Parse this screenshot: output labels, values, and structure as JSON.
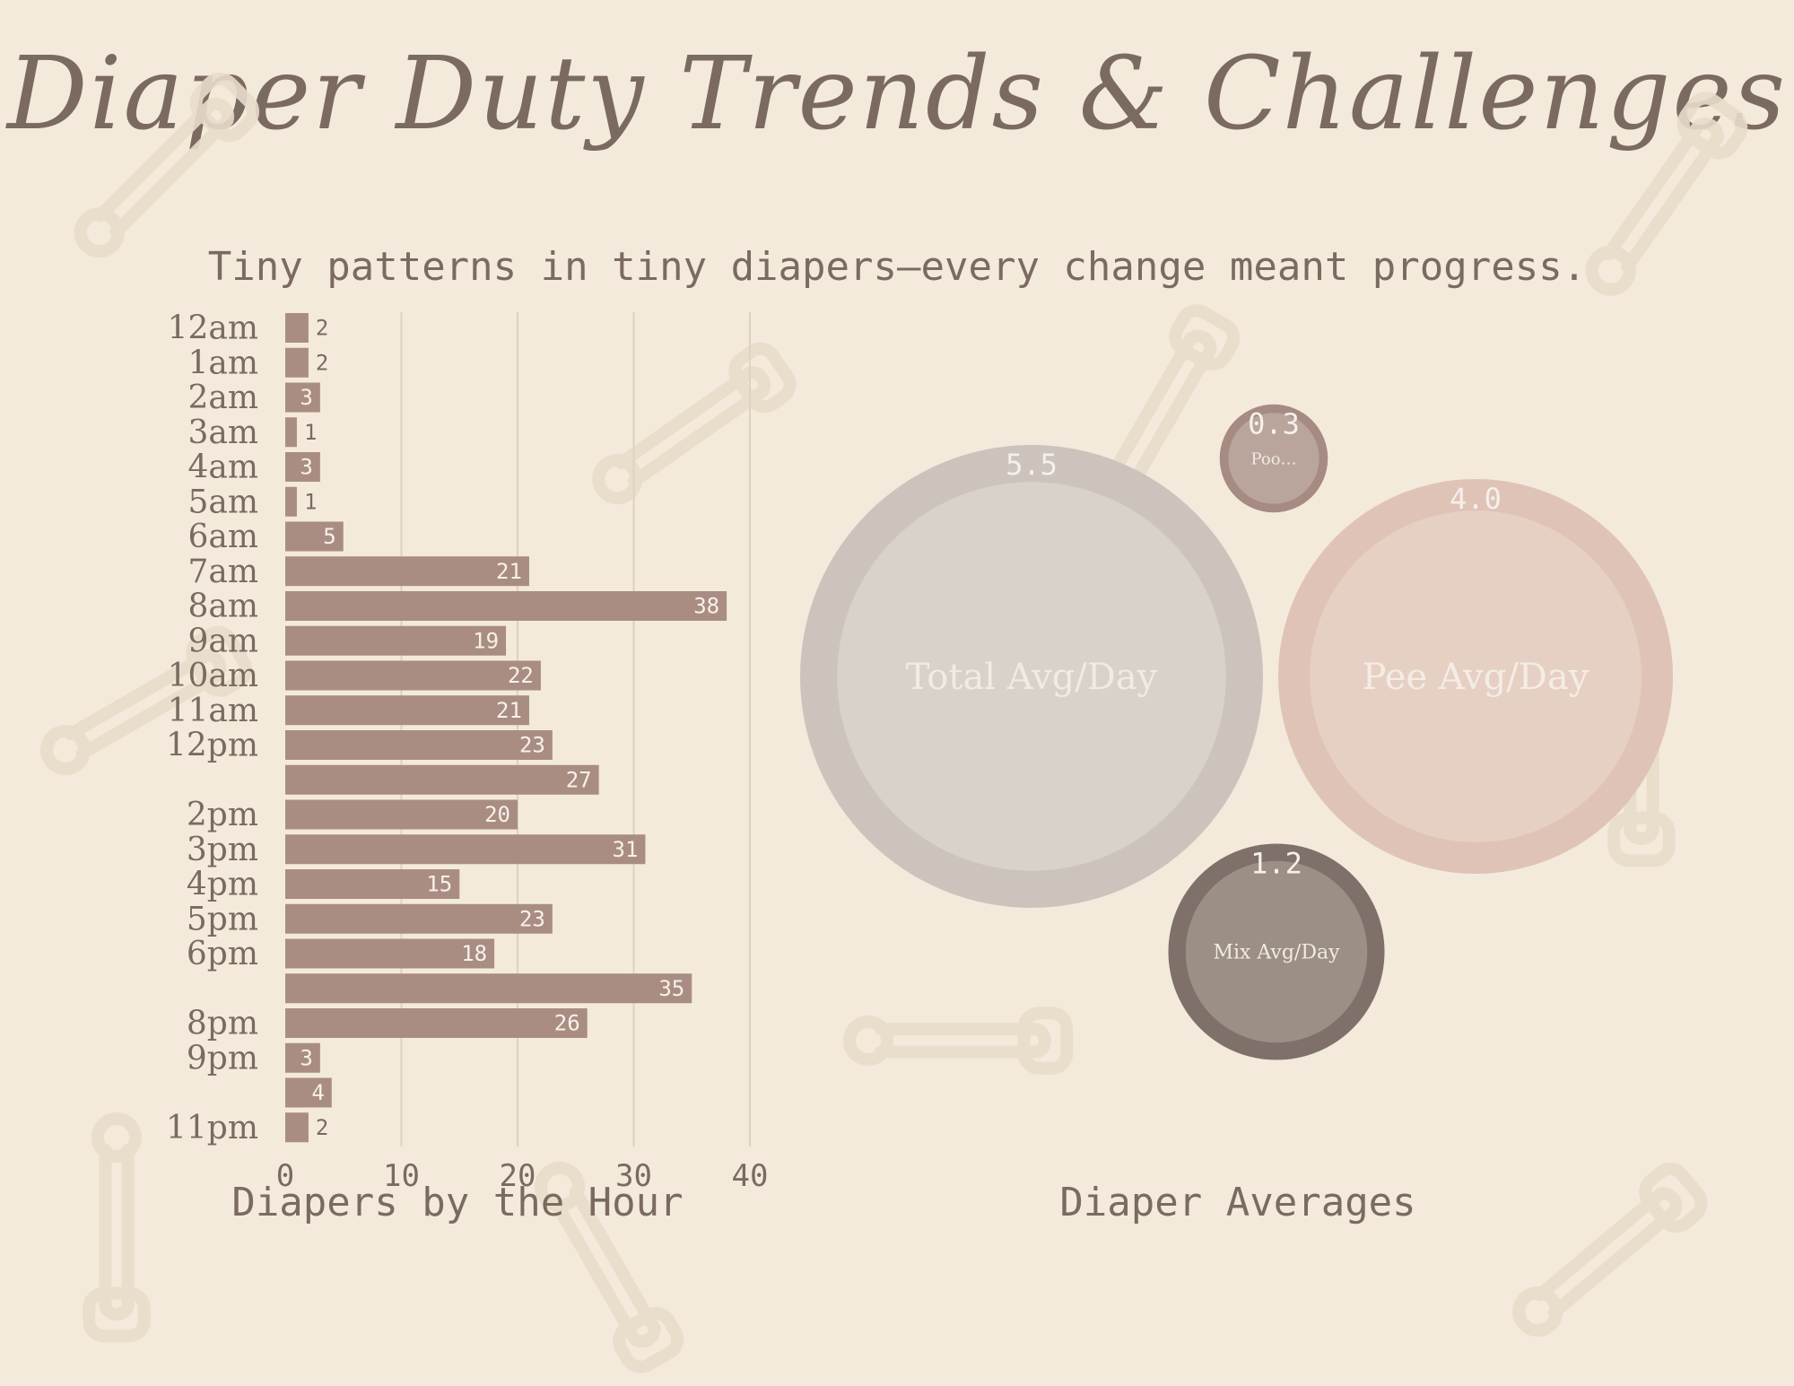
{
  "title": "Diaper Duty Trends & Challenges",
  "subtitle": "Tiny patterns in tiny diapers—every change meant progress.",
  "colors": {
    "background": "#f3eadb",
    "text": "#7a6a60",
    "bar": "#a98d83",
    "grid": "#ddd2c4",
    "pin": "#e8dccb"
  },
  "chart_data": [
    {
      "type": "bar",
      "orientation": "horizontal",
      "title": "Diapers by the Hour",
      "categories": [
        "12am",
        "1am",
        "2am",
        "3am",
        "4am",
        "5am",
        "6am",
        "7am",
        "8am",
        "9am",
        "10am",
        "11am",
        "12pm",
        "",
        "2pm",
        "3pm",
        "4pm",
        "5pm",
        "6pm",
        "",
        "8pm",
        "9pm",
        "",
        "11pm"
      ],
      "values": [
        2,
        2,
        3,
        1,
        3,
        1,
        5,
        21,
        38,
        19,
        22,
        21,
        23,
        27,
        20,
        31,
        15,
        23,
        18,
        35,
        26,
        3,
        4,
        2
      ],
      "xlim": [
        0,
        40
      ],
      "xticks": [
        0,
        10,
        20,
        30,
        40
      ],
      "grid": true,
      "data_labels": true
    },
    {
      "type": "bubble",
      "title": "Diaper Averages",
      "series": [
        {
          "label": "Total Avg/Day",
          "value": 5.5,
          "color": "#cdc3bd",
          "inner": "#d8d2ca",
          "label_color": "#f1ebe3"
        },
        {
          "label": "Poo…",
          "value": 0.3,
          "color": "#a68b82",
          "inner": "#baa59c",
          "label_color": "#f1ebe3"
        },
        {
          "label": "Pee Avg/Day",
          "value": 4.0,
          "color": "#e0c3b7",
          "inner": "#e6d0c4",
          "label_color": "#f4ede6"
        },
        {
          "label": "Mix Avg/Day",
          "value": 1.2,
          "color": "#7f7169",
          "inner": "#9c8f86",
          "label_color": "#f1ebe3"
        }
      ]
    }
  ]
}
